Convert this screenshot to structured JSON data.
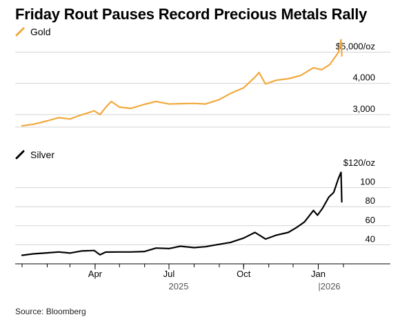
{
  "chart_data": [
    {
      "type": "line",
      "title": "Friday Rout Pauses Record Precious Metals Rally",
      "series": [
        {
          "name": "Gold",
          "color": "#f2a83b",
          "points": [
            [
              "2025-01-01",
              2640
            ],
            [
              "2025-01-15",
              2690
            ],
            [
              "2025-02-01",
              2800
            ],
            [
              "2025-02-15",
              2900
            ],
            [
              "2025-03-01",
              2860
            ],
            [
              "2025-03-15",
              2990
            ],
            [
              "2025-03-31",
              3120
            ],
            [
              "2025-04-07",
              3000
            ],
            [
              "2025-04-14",
              3230
            ],
            [
              "2025-04-21",
              3420
            ],
            [
              "2025-05-01",
              3240
            ],
            [
              "2025-05-15",
              3200
            ],
            [
              "2025-06-01",
              3330
            ],
            [
              "2025-06-15",
              3420
            ],
            [
              "2025-07-01",
              3340
            ],
            [
              "2025-07-15",
              3350
            ],
            [
              "2025-08-01",
              3360
            ],
            [
              "2025-08-15",
              3340
            ],
            [
              "2025-09-01",
              3480
            ],
            [
              "2025-09-15",
              3680
            ],
            [
              "2025-10-01",
              3860
            ],
            [
              "2025-10-15",
              4200
            ],
            [
              "2025-10-20",
              4350
            ],
            [
              "2025-10-28",
              3980
            ],
            [
              "2025-11-10",
              4100
            ],
            [
              "2025-11-25",
              4150
            ],
            [
              "2025-12-10",
              4250
            ],
            [
              "2025-12-26",
              4500
            ],
            [
              "2026-01-05",
              4440
            ],
            [
              "2026-01-15",
              4600
            ],
            [
              "2026-01-26",
              5000
            ],
            [
              "2026-01-29",
              5400
            ],
            [
              "2026-01-30",
              4880
            ]
          ]
        },
        {
          "name": "Silver",
          "color": "#000000",
          "points": [
            [
              "2025-01-01",
              29.0
            ],
            [
              "2025-01-15",
              30.5
            ],
            [
              "2025-02-01",
              31.5
            ],
            [
              "2025-02-15",
              32.5
            ],
            [
              "2025-03-01",
              31.3
            ],
            [
              "2025-03-15",
              33.5
            ],
            [
              "2025-03-31",
              34.0
            ],
            [
              "2025-04-07",
              29.5
            ],
            [
              "2025-04-14",
              32.3
            ],
            [
              "2025-05-01",
              32.5
            ],
            [
              "2025-05-15",
              32.5
            ],
            [
              "2025-06-01",
              33.0
            ],
            [
              "2025-06-15",
              36.5
            ],
            [
              "2025-07-01",
              36.0
            ],
            [
              "2025-07-15",
              38.5
            ],
            [
              "2025-08-01",
              37.0
            ],
            [
              "2025-08-15",
              38.0
            ],
            [
              "2025-09-01",
              40.5
            ],
            [
              "2025-09-15",
              42.5
            ],
            [
              "2025-10-01",
              47.0
            ],
            [
              "2025-10-15",
              53.0
            ],
            [
              "2025-10-28",
              46.0
            ],
            [
              "2025-11-10",
              50.0
            ],
            [
              "2025-11-25",
              53.0
            ],
            [
              "2025-12-05",
              58.0
            ],
            [
              "2025-12-15",
              64.0
            ],
            [
              "2025-12-26",
              76.0
            ],
            [
              "2025-12-31",
              71.0
            ],
            [
              "2026-01-06",
              78.0
            ],
            [
              "2026-01-14",
              90.0
            ],
            [
              "2026-01-20",
              95.0
            ],
            [
              "2026-01-26",
              110.0
            ],
            [
              "2026-01-29",
              116.0
            ],
            [
              "2026-01-30",
              85.0
            ]
          ]
        }
      ],
      "panels": [
        {
          "series": "Gold",
          "ylim": [
            2600,
            5300
          ],
          "yticks": [
            {
              "value": 3000,
              "label": "3,000"
            },
            {
              "value": 4000,
              "label": "4,000"
            },
            {
              "value": 5000,
              "label": "$5,000/oz"
            }
          ]
        },
        {
          "series": "Silver",
          "ylim": [
            20,
            120
          ],
          "yticks": [
            {
              "value": 40,
              "label": "40"
            },
            {
              "value": 60,
              "label": "60"
            },
            {
              "value": 80,
              "label": "80"
            },
            {
              "value": 100,
              "label": "100"
            },
            {
              "value": 120,
              "label": "$120/oz"
            }
          ]
        }
      ],
      "xlim": [
        "2025-01-01",
        "2026-02-01"
      ],
      "xticks": [
        {
          "date": "2025-04-01",
          "label": "Apr"
        },
        {
          "date": "2025-07-01",
          "label": "Jul"
        },
        {
          "date": "2025-10-01",
          "label": "Oct"
        },
        {
          "date": "2026-01-01",
          "label": "Jan"
        }
      ],
      "years": [
        {
          "date": "2025-07-01",
          "label": "2025"
        },
        {
          "date": "2026-01-01",
          "label": "|2026"
        }
      ],
      "grid": true,
      "legend": "top-left"
    }
  ],
  "source": "Source: Bloomberg"
}
